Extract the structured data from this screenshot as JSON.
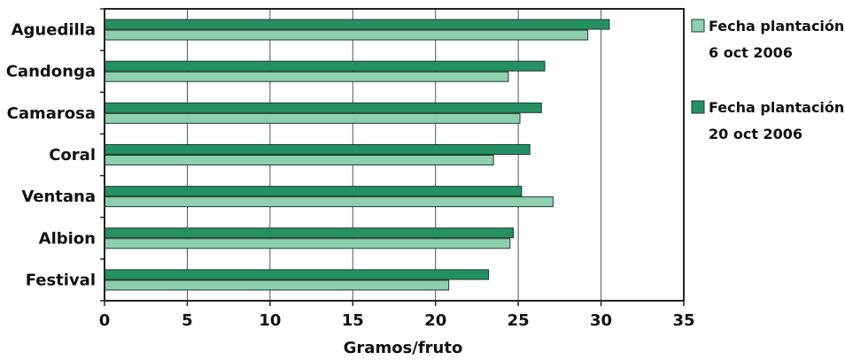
{
  "chart_data": {
    "type": "bar",
    "orientation": "horizontal",
    "categories": [
      "Aguedilla",
      "Candonga",
      "Camarosa",
      "Coral",
      "Ventana",
      "Albion",
      "Festival"
    ],
    "series": [
      {
        "name_lines": [
          "Fecha plantación:",
          "20 oct 2006"
        ],
        "color": "#259063",
        "values": [
          30.5,
          26.6,
          26.4,
          25.7,
          25.2,
          24.7,
          23.2
        ]
      },
      {
        "name_lines": [
          "Fecha plantación:",
          "6 oct 2006"
        ],
        "color": "#8ecfb0",
        "values": [
          29.2,
          24.4,
          25.1,
          23.5,
          27.1,
          24.5,
          20.8
        ]
      }
    ],
    "xlabel": "Gramos/fruto",
    "xlim": [
      0,
      35
    ],
    "xticks": [
      0,
      5,
      10,
      15,
      20,
      25,
      30,
      35
    ],
    "grid": "vertical",
    "legend_position": "right"
  }
}
